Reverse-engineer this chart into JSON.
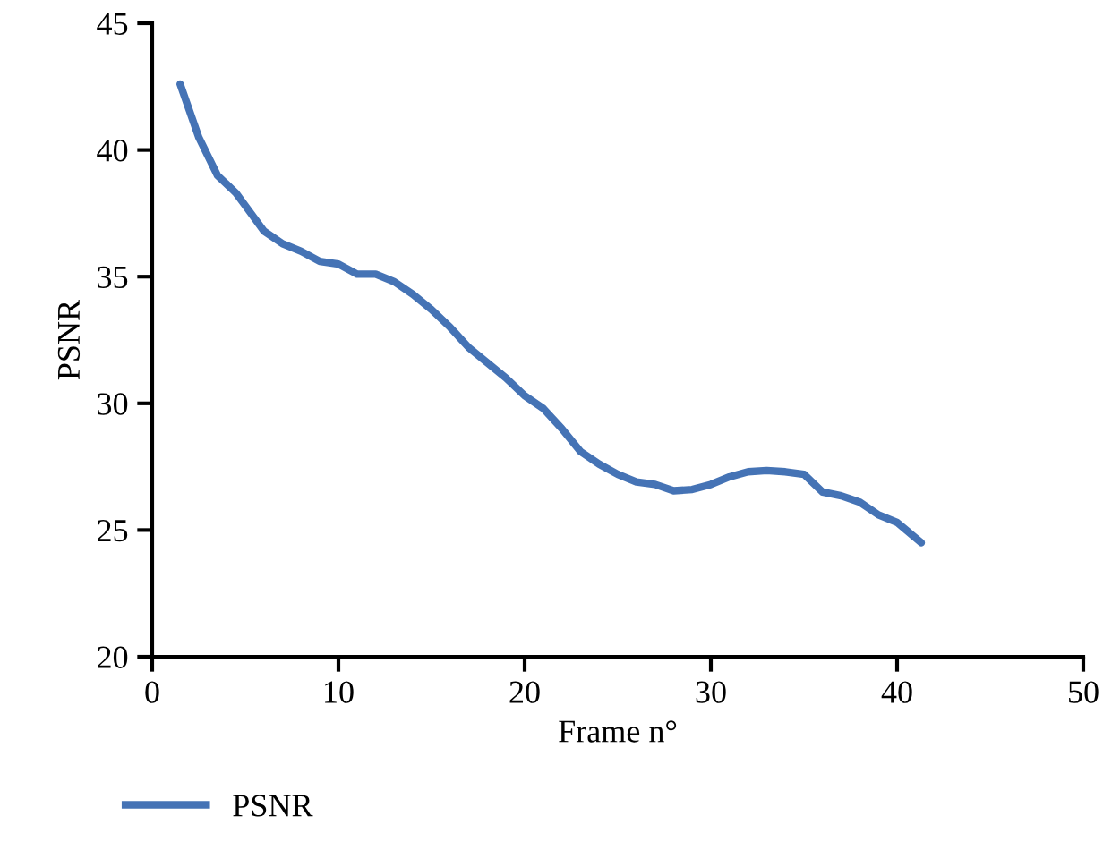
{
  "chart_data": {
    "type": "line",
    "xlabel": "Frame n°",
    "ylabel": "PSNR",
    "xlim": [
      0,
      50
    ],
    "ylim": [
      20,
      45
    ],
    "xticks": [
      0,
      10,
      20,
      30,
      40,
      50
    ],
    "yticks": [
      20,
      25,
      30,
      35,
      40,
      45
    ],
    "grid": false,
    "legend": "bottom left",
    "marker": "none",
    "line_style": "solid",
    "series": [
      {
        "name": "PSNR",
        "color": "#4573b5",
        "x": [
          1.5,
          2.5,
          3.5,
          4.5,
          5,
          6,
          7,
          8,
          9,
          10,
          11,
          12,
          13,
          14,
          15,
          16,
          17,
          18,
          19,
          20,
          21,
          22,
          23,
          24,
          25,
          26,
          27,
          28,
          29,
          30,
          31,
          32,
          33,
          34,
          35,
          36,
          37,
          38,
          39,
          40,
          41.3
        ],
        "values": [
          42.6,
          40.5,
          39.0,
          38.3,
          37.8,
          36.8,
          36.3,
          36.0,
          35.6,
          35.5,
          35.1,
          35.1,
          34.8,
          34.3,
          33.7,
          33.0,
          32.2,
          31.6,
          31.0,
          30.3,
          29.8,
          29.0,
          28.1,
          27.6,
          27.2,
          26.9,
          26.8,
          26.55,
          26.6,
          26.8,
          27.1,
          27.3,
          27.35,
          27.3,
          27.2,
          26.5,
          26.35,
          26.1,
          25.6,
          25.3,
          24.5
        ]
      }
    ]
  }
}
